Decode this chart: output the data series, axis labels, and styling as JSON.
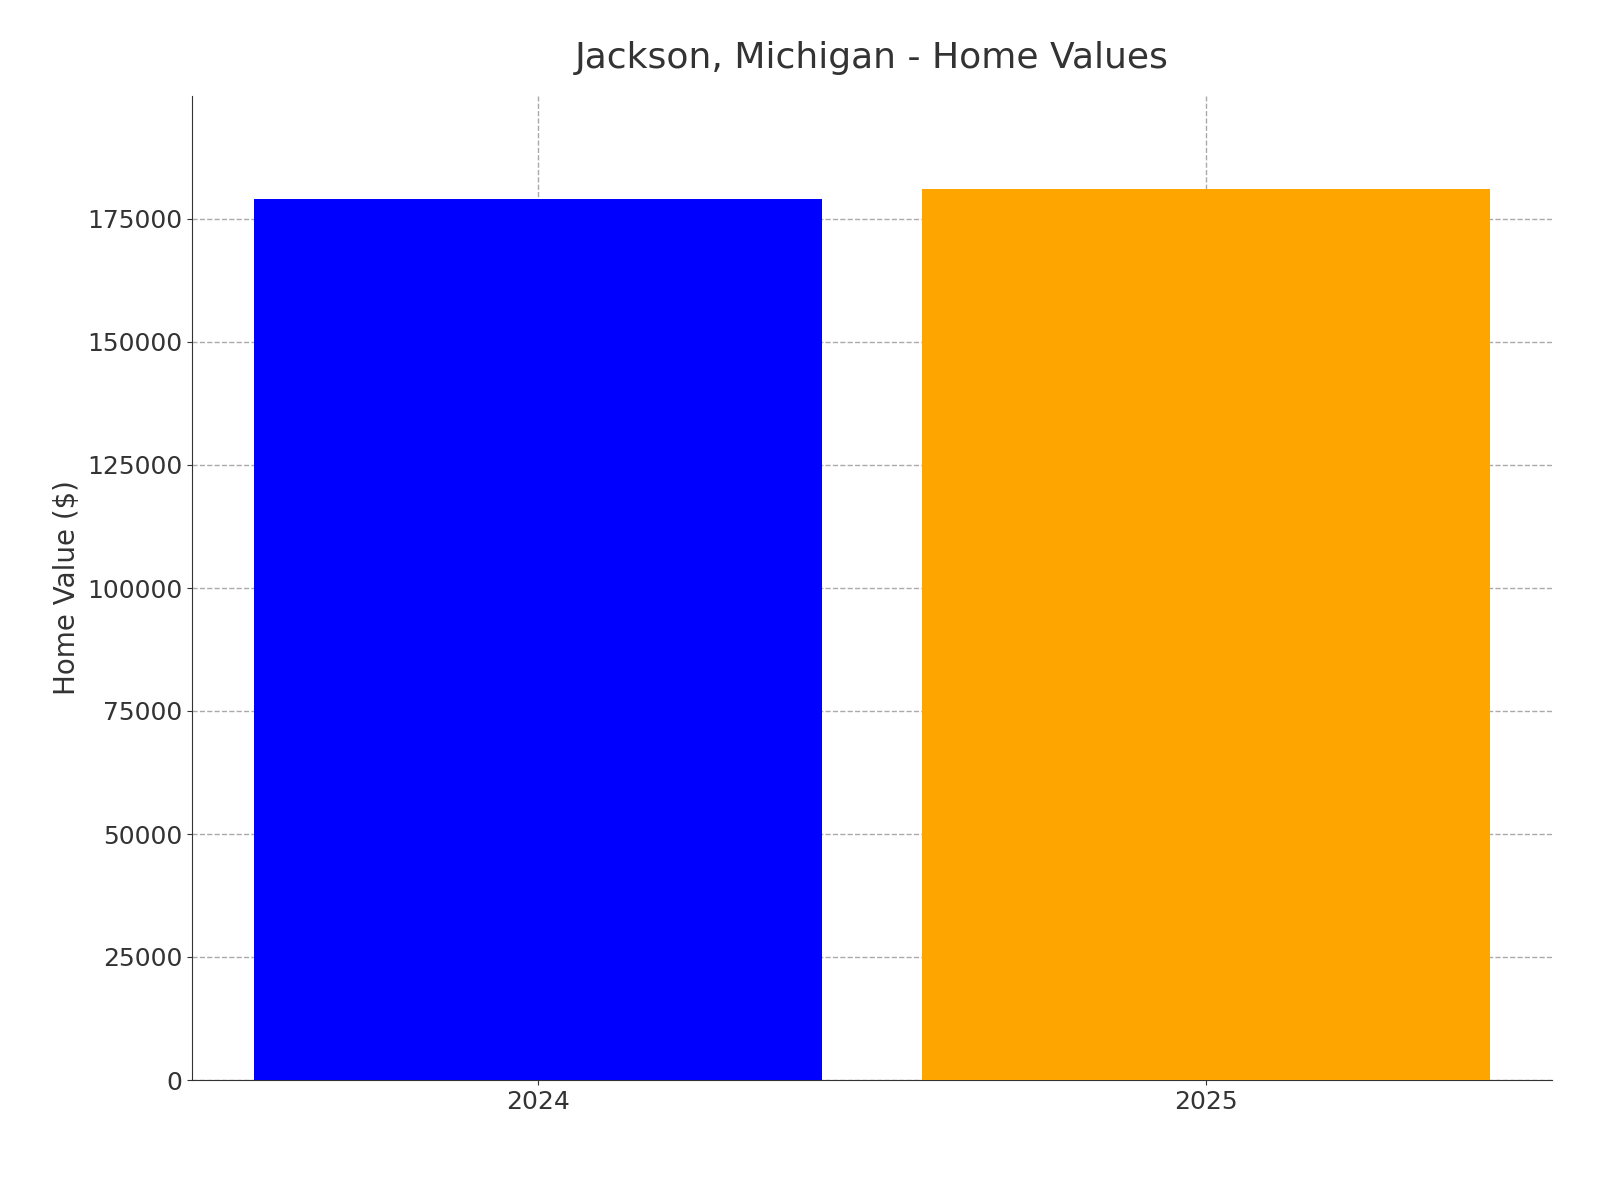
{
  "title": "Jackson, Michigan - Home Values",
  "categories": [
    "2024",
    "2025"
  ],
  "values": [
    179000,
    181000
  ],
  "bar_colors": [
    "#0000ff",
    "#ffa500"
  ],
  "ylabel": "Home Value ($)",
  "ylim": [
    0,
    200000
  ],
  "yticks": [
    0,
    25000,
    50000,
    75000,
    100000,
    125000,
    150000,
    175000
  ],
  "grid_color": "#aaaaaa",
  "background_color": "#ffffff",
  "title_fontsize": 26,
  "label_fontsize": 20,
  "tick_fontsize": 18,
  "bar_width": 0.85
}
